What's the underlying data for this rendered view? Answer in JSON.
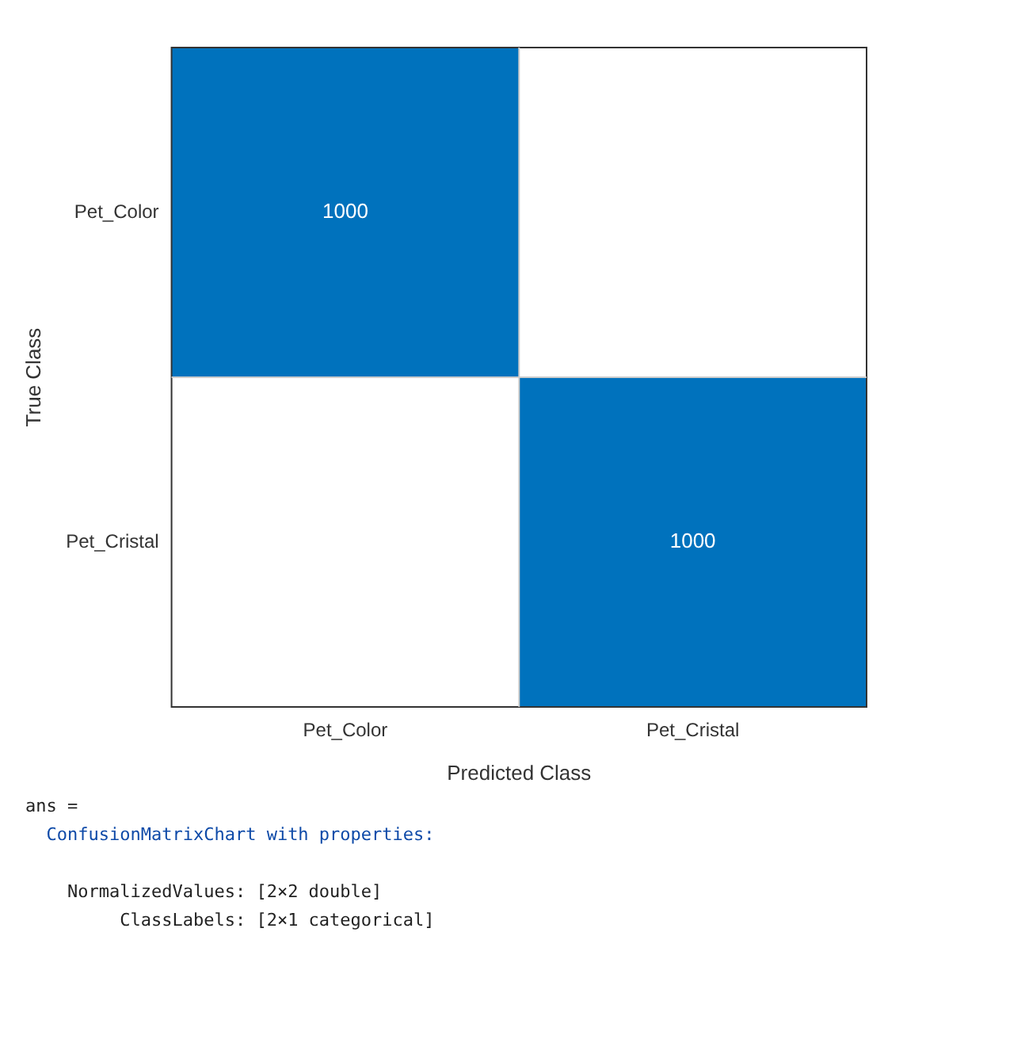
{
  "chart_data": {
    "type": "heatmap",
    "xlabel": "Predicted Class",
    "ylabel": "True Class",
    "categories": [
      "Pet_Color",
      "Pet_Cristal"
    ],
    "y_categories": [
      "Pet_Color",
      "Pet_Cristal"
    ],
    "cells": [
      [
        1000,
        null
      ],
      [
        null,
        1000
      ]
    ],
    "color": "#0072bd",
    "data_labels": true,
    "annotations": [
      "ans =",
      "ConfusionMatrixChart with properties:",
      "NormalizedValues: [2×2 double]",
      "ClassLabels: [2×1 categorical]"
    ]
  }
}
